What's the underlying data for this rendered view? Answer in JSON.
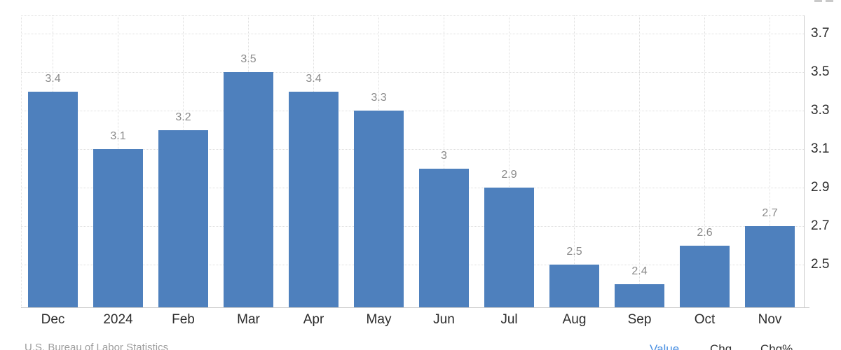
{
  "chart_data": {
    "type": "bar",
    "title": "",
    "xlabel": "",
    "ylabel": "",
    "categories": [
      "Dec",
      "2024",
      "Feb",
      "Mar",
      "Apr",
      "May",
      "Jun",
      "Jul",
      "Aug",
      "Sep",
      "Oct",
      "Nov"
    ],
    "values": [
      3.4,
      3.1,
      3.2,
      3.5,
      3.4,
      3.3,
      3,
      2.9,
      2.5,
      2.4,
      2.6,
      2.7
    ],
    "data_labels": [
      "3.4",
      "3.1",
      "3.2",
      "3.5",
      "3.4",
      "3.3",
      "3",
      "2.9",
      "2.5",
      "2.4",
      "2.6",
      "2.7"
    ],
    "y_ticks": [
      3.7,
      3.5,
      3.3,
      3.1,
      2.9,
      2.7,
      2.5
    ],
    "y_tick_labels": [
      "3.7",
      "3.5",
      "3.3",
      "3.1",
      "2.9",
      "2.7",
      "2.5"
    ],
    "ylim": [
      2.28,
      3.79
    ],
    "grid": true,
    "legend_position": "none",
    "bar_color": "#4e80bd",
    "grid_color": "#dedede",
    "axis_line_color": "#cccccc",
    "data_label_color": "#8a8a8a",
    "tick_label_color": "#2b2b2b"
  },
  "footer": {
    "source": "U.S. Bureau of Labor Statistics",
    "toggles": [
      {
        "label": "Value",
        "color": "#4a90e2"
      },
      {
        "label": "Chg",
        "color": "#333333"
      },
      {
        "label": "Chg%",
        "color": "#333333"
      }
    ]
  }
}
